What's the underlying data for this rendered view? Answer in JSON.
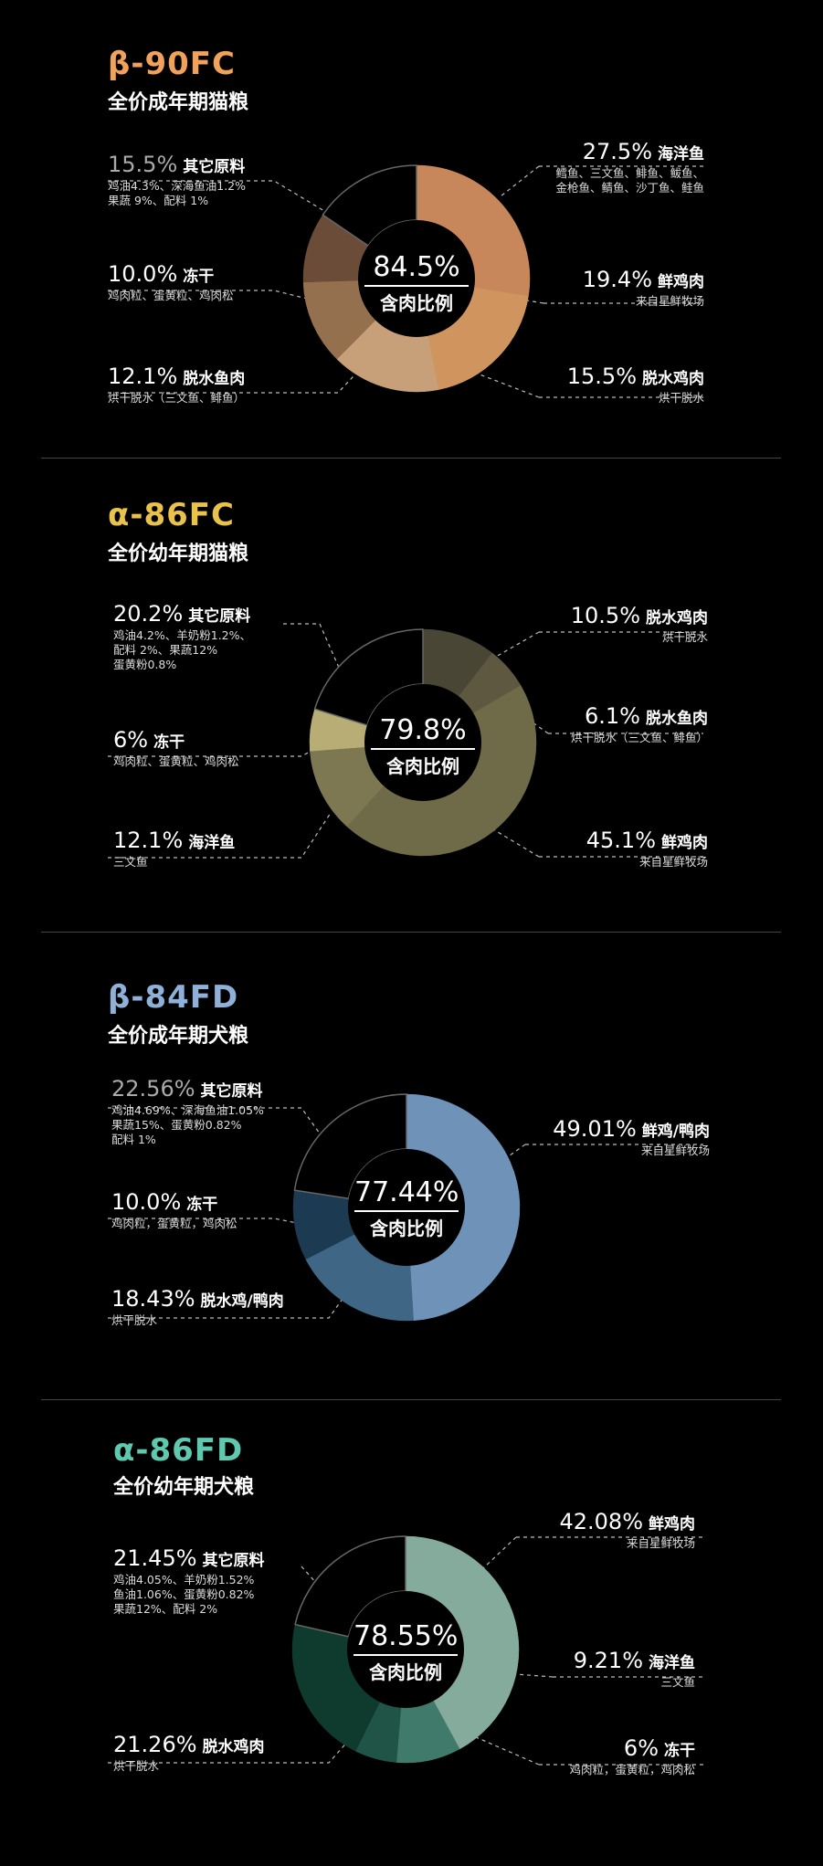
{
  "panels": [
    {
      "title": "β-90FC",
      "subtitle": "全价成年期猫粮",
      "title_color": "#f0a25a",
      "center_value": "84.5%",
      "center_caption": "含肉比例",
      "labels": [
        {
          "pct": "15.5%",
          "name": "其它原料",
          "desc": [
            "鸡油4.3%、深海鱼油1.2%",
            "果蔬 9%、配料 1%"
          ],
          "dim": true
        },
        {
          "pct": "10.0%",
          "name": "冻干",
          "desc": [
            "鸡肉粒、蛋黄粒、鸡肉松"
          ]
        },
        {
          "pct": "12.1%",
          "name": "脱水鱼肉",
          "desc": [
            "烘干脱水（三文鱼、鲱鱼）"
          ]
        },
        {
          "pct": "27.5%",
          "name": "海洋鱼",
          "desc": [
            "鳕鱼、三文鱼、鲱鱼、鲅鱼、",
            "金枪鱼、鲭鱼、沙丁鱼、鲑鱼"
          ]
        },
        {
          "pct": "19.4%",
          "name": "鲜鸡肉",
          "desc": [
            "来自星鲜牧场"
          ]
        },
        {
          "pct": "15.5%",
          "name": "脱水鸡肉",
          "desc": [
            "烘干脱水"
          ]
        }
      ]
    },
    {
      "title": "α-86FC",
      "subtitle": "全价幼年期猫粮",
      "title_color": "#e8c24a",
      "center_value": "79.8%",
      "center_caption": "含肉比例",
      "labels": [
        {
          "pct": "20.2%",
          "name": "其它原料",
          "desc": [
            "鸡油4.2%、羊奶粉1.2%、",
            "配料 2%、果蔬12%",
            "蛋黄粉0.8%"
          ]
        },
        {
          "pct": "6%",
          "name": "冻干",
          "desc": [
            "鸡肉粒、蛋黄粒、鸡肉松"
          ]
        },
        {
          "pct": "12.1%",
          "name": "海洋鱼",
          "desc": [
            "三文鱼"
          ]
        },
        {
          "pct": "10.5%",
          "name": "脱水鸡肉",
          "desc": [
            "烘干脱水"
          ]
        },
        {
          "pct": "6.1%",
          "name": "脱水鱼肉",
          "desc": [
            "烘干脱水（三文鱼、鲱鱼）"
          ]
        },
        {
          "pct": "45.1%",
          "name": "鲜鸡肉",
          "desc": [
            "来自星鲜牧场"
          ]
        }
      ]
    },
    {
      "title": "β-84FD",
      "subtitle": "全价成年期犬粮",
      "title_color": "#8fb0d8",
      "center_value": "77.44%",
      "center_caption": "含肉比例",
      "labels": [
        {
          "pct": "22.56%",
          "name": "其它原料",
          "desc": [
            "鸡油4.69%、深海鱼油1.05%",
            "果蔬15%、蛋黄粉0.82%",
            "配料 1%"
          ],
          "dim": true
        },
        {
          "pct": "10.0%",
          "name": "冻干",
          "desc": [
            "鸡肉粒，蛋黄粒，鸡肉松"
          ]
        },
        {
          "pct": "18.43%",
          "name": "脱水鸡/鸭肉",
          "desc": [
            "烘干脱水"
          ]
        },
        {
          "pct": "49.01%",
          "name": "鲜鸡/鸭肉",
          "desc": [
            "来自星鲜牧场"
          ]
        }
      ]
    },
    {
      "title": "α-86FD",
      "subtitle": "全价幼年期犬粮",
      "title_color": "#5fc9b0",
      "center_value": "78.55%",
      "center_caption": "含肉比例",
      "labels": [
        {
          "pct": "21.45%",
          "name": "其它原料",
          "desc": [
            "鸡油4.05%、羊奶粉1.52%",
            "鱼油1.06%、蛋黄粉0.82%",
            "果蔬12%、配料 2%"
          ]
        },
        {
          "pct": "21.26%",
          "name": "脱水鸡肉",
          "desc": [
            "烘干脱水"
          ]
        },
        {
          "pct": "42.08%",
          "name": "鲜鸡肉",
          "desc": [
            "来自星鲜牧场"
          ]
        },
        {
          "pct": "9.21%",
          "name": "海洋鱼",
          "desc": [
            "三文鱼"
          ]
        },
        {
          "pct": "6%",
          "name": "冻干",
          "desc": [
            "鸡肉粒，蛋黄粒，鸡肉松"
          ]
        }
      ]
    }
  ],
  "chart_data": [
    {
      "type": "pie",
      "categories": [
        "海洋鱼",
        "鲜鸡肉",
        "脱水鸡肉",
        "脱水鱼肉",
        "冻干",
        "其它原料"
      ],
      "values": [
        27.5,
        19.4,
        15.5,
        12.1,
        10.0,
        15.5
      ],
      "colors": [
        "#c8875a",
        "#d0955e",
        "#c79f78",
        "#94704f",
        "#6a4c38",
        "#000000"
      ]
    },
    {
      "type": "pie",
      "categories": [
        "脱水鸡肉",
        "脱水鱼肉",
        "鲜鸡肉",
        "海洋鱼",
        "冻干",
        "其它原料"
      ],
      "values": [
        10.5,
        6.1,
        45.1,
        12.1,
        6,
        20.2
      ],
      "colors": [
        "#4a4636",
        "#5e5840",
        "#6f6a48",
        "#7d7752",
        "#b8ad74",
        "#000000"
      ]
    },
    {
      "type": "pie",
      "categories": [
        "鲜鸡/鸭肉",
        "脱水鸡/鸭肉",
        "冻干",
        "其它原料"
      ],
      "values": [
        49.01,
        18.43,
        10.0,
        22.56
      ],
      "colors": [
        "#6f93b8",
        "#3f6685",
        "#1c3a52",
        "#000000"
      ]
    },
    {
      "type": "pie",
      "categories": [
        "鲜鸡肉",
        "海洋鱼",
        "冻干",
        "脱水鸡肉",
        "其它原料"
      ],
      "values": [
        42.08,
        9.21,
        6,
        21.26,
        21.45
      ],
      "colors": [
        "#85ab9c",
        "#3f7a6a",
        "#1f5446",
        "#0f3a2e",
        "#000000"
      ]
    }
  ]
}
